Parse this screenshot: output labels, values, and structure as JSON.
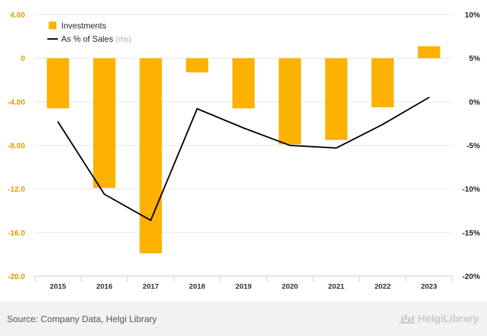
{
  "chart_data": {
    "type": "bar",
    "categories": [
      "2015",
      "2016",
      "2017",
      "2018",
      "2019",
      "2020",
      "2021",
      "2022",
      "2023"
    ],
    "series": [
      {
        "name": "Investments",
        "type": "bar",
        "axis": "left",
        "color": "#FDB100",
        "values": [
          -4.6,
          -11.9,
          -17.9,
          -1.3,
          -4.6,
          -7.9,
          -7.5,
          -4.5,
          1.1
        ]
      },
      {
        "name": "As % of Sales",
        "type": "line",
        "axis": "right",
        "color": "#000000",
        "values": [
          -2.3,
          -10.6,
          -13.6,
          -0.8,
          -3.0,
          -5.0,
          -5.3,
          -2.6,
          0.5
        ]
      }
    ],
    "legend_note": "(rhs)",
    "legend_position": "top-left",
    "y_left": {
      "ticks": [
        "4.00",
        "0",
        "-4.00",
        "-8.00",
        "-12.0",
        "-16.0",
        "-20.0"
      ],
      "range": [
        -20,
        4
      ]
    },
    "y_right": {
      "ticks": [
        "10%",
        "5%",
        "0%",
        "-5%",
        "-10%",
        "-15%",
        "-20%"
      ],
      "range": [
        -20,
        10
      ]
    },
    "grid": "horizontal"
  },
  "footer": {
    "source": "Source: Company Data, Helgi Library",
    "brand": "HelgiLibrary"
  }
}
